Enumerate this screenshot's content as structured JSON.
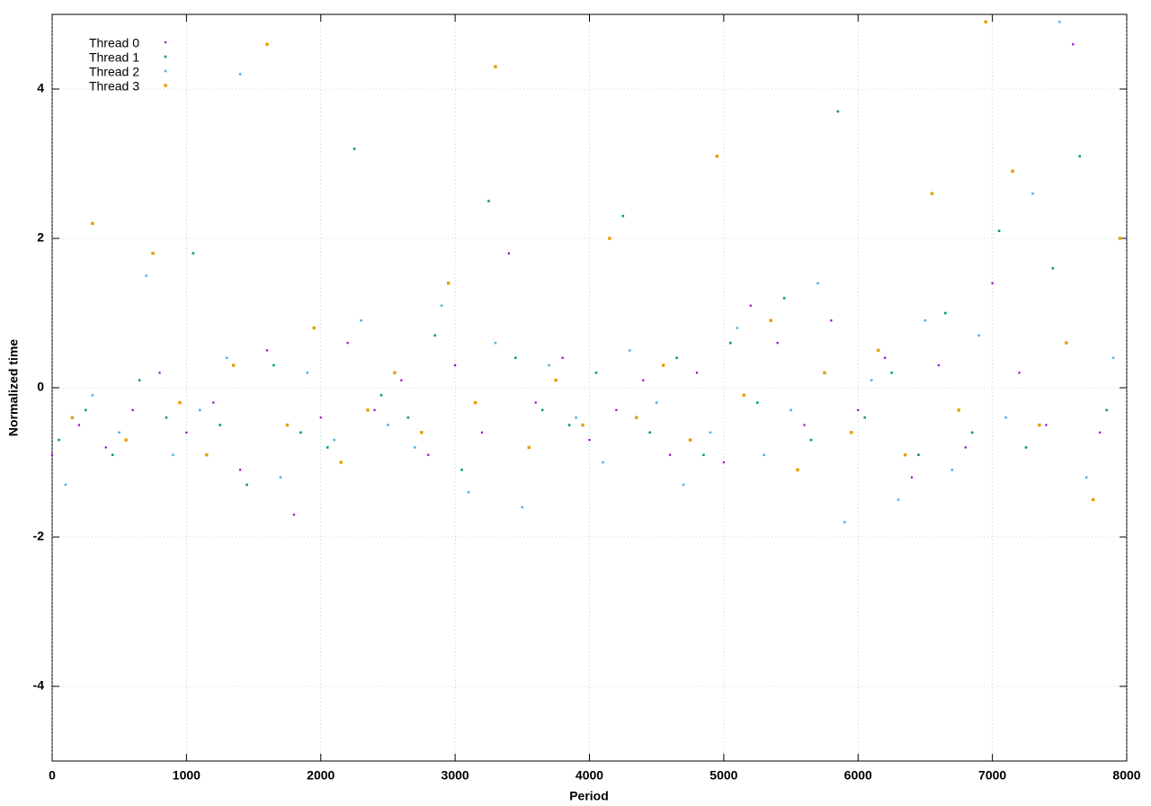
{
  "chart_data": {
    "type": "scatter",
    "xlabel": "Period",
    "ylabel": "Normalized time",
    "xlim": [
      0,
      8000
    ],
    "ylim": [
      -5,
      5
    ],
    "xticks": [
      0,
      1000,
      2000,
      3000,
      4000,
      5000,
      6000,
      7000,
      8000
    ],
    "yticks": [
      -4,
      -2,
      0,
      2,
      4
    ],
    "grid": true,
    "legend": "top-left",
    "series": [
      {
        "name": "Thread 0",
        "color": "#9400d3",
        "x": [
          0,
          200,
          400,
          600,
          800,
          1000,
          1200,
          1400,
          1600,
          1800,
          2000,
          2200,
          2400,
          2600,
          2800,
          3000,
          3200,
          3400,
          3600,
          3800,
          4000,
          4200,
          4400,
          4600,
          4800,
          5000,
          5200,
          5400,
          5600,
          5800,
          6000,
          6200,
          6400,
          6600,
          6800,
          7000,
          7200,
          7400,
          7600,
          7800
        ],
        "values": [
          -0.9,
          -0.5,
          -0.8,
          -0.3,
          0.2,
          -0.6,
          -0.2,
          -1.1,
          0.5,
          -1.7,
          -0.4,
          0.6,
          -0.3,
          0.1,
          -0.9,
          0.3,
          -0.6,
          1.8,
          -0.2,
          0.4,
          -0.7,
          -0.3,
          0.1,
          -0.9,
          0.2,
          -1.0,
          1.1,
          0.6,
          -0.5,
          0.9,
          -0.3,
          0.4,
          -1.2,
          0.3,
          -0.8,
          1.4,
          0.2,
          -0.5,
          4.6,
          -0.6
        ]
      },
      {
        "name": "Thread 1",
        "color": "#009e73",
        "x": [
          50,
          250,
          450,
          650,
          850,
          1050,
          1250,
          1450,
          1650,
          1850,
          2050,
          2250,
          2450,
          2650,
          2850,
          3050,
          3250,
          3450,
          3650,
          3850,
          4050,
          4250,
          4450,
          4650,
          4850,
          5050,
          5250,
          5450,
          5650,
          5850,
          6050,
          6250,
          6450,
          6650,
          6850,
          7050,
          7250,
          7450,
          7650,
          7850
        ],
        "values": [
          -0.7,
          -0.3,
          -0.9,
          0.1,
          -0.4,
          1.8,
          -0.5,
          -1.3,
          0.3,
          -0.6,
          -0.8,
          3.2,
          -0.1,
          -0.4,
          0.7,
          -1.1,
          2.5,
          0.4,
          -0.3,
          -0.5,
          0.2,
          2.3,
          -0.6,
          0.4,
          -0.9,
          0.6,
          -0.2,
          1.2,
          -0.7,
          3.7,
          -0.4,
          0.2,
          -0.9,
          1.0,
          -0.6,
          2.1,
          -0.8,
          1.6,
          3.1,
          -0.3
        ]
      },
      {
        "name": "Thread 2",
        "color": "#56b4e9",
        "x": [
          100,
          300,
          500,
          700,
          900,
          1100,
          1300,
          1400,
          1700,
          1900,
          2100,
          2300,
          2500,
          2700,
          2900,
          3100,
          3300,
          3500,
          3700,
          3900,
          4100,
          4300,
          4500,
          4700,
          4900,
          5100,
          5300,
          5500,
          5700,
          5900,
          6100,
          6300,
          6500,
          6700,
          6900,
          7100,
          7300,
          7500,
          7700,
          7900
        ],
        "values": [
          -1.3,
          -0.1,
          -0.6,
          1.5,
          -0.9,
          -0.3,
          0.4,
          4.2,
          -1.2,
          0.2,
          -0.7,
          0.9,
          -0.5,
          -0.8,
          1.1,
          -1.4,
          0.6,
          -1.6,
          0.3,
          -0.4,
          -1.0,
          0.5,
          -0.2,
          -1.3,
          -0.6,
          0.8,
          -0.9,
          -0.3,
          1.4,
          -1.8,
          0.1,
          -1.5,
          0.9,
          -1.1,
          0.7,
          -0.4,
          2.6,
          4.9,
          -1.2,
          0.4
        ]
      },
      {
        "name": "Thread 3",
        "color": "#e69f00",
        "x": [
          150,
          300,
          550,
          750,
          950,
          1150,
          1350,
          1600,
          1750,
          1950,
          2150,
          2350,
          2550,
          2750,
          2950,
          3150,
          3300,
          3550,
          3750,
          3950,
          4150,
          4350,
          4550,
          4750,
          4950,
          5150,
          5350,
          5550,
          5750,
          5950,
          6150,
          6350,
          6550,
          6750,
          6950,
          7150,
          7350,
          7550,
          7750,
          7950
        ],
        "values": [
          -0.4,
          2.2,
          -0.7,
          1.8,
          -0.2,
          -0.9,
          0.3,
          4.6,
          -0.5,
          0.8,
          -1.0,
          -0.3,
          0.2,
          -0.6,
          1.4,
          -0.2,
          4.3,
          -0.8,
          0.1,
          -0.5,
          2.0,
          -0.4,
          0.3,
          -0.7,
          3.1,
          -0.1,
          0.9,
          -1.1,
          0.2,
          -0.6,
          0.5,
          -0.9,
          2.6,
          -0.3,
          4.9,
          2.9,
          -0.5,
          0.6,
          -1.5,
          2.0
        ]
      }
    ]
  }
}
